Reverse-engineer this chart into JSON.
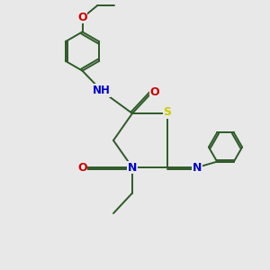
{
  "bg_color": "#e8e8e8",
  "bond_color": "#2d5a27",
  "atom_colors": {
    "N": "#0000cc",
    "O": "#cc0000",
    "S": "#cccc00",
    "H": "#2d5a27"
  },
  "line_width": 1.4,
  "font_size": 8.5,
  "figsize": [
    3.0,
    3.0
  ],
  "dpi": 100
}
